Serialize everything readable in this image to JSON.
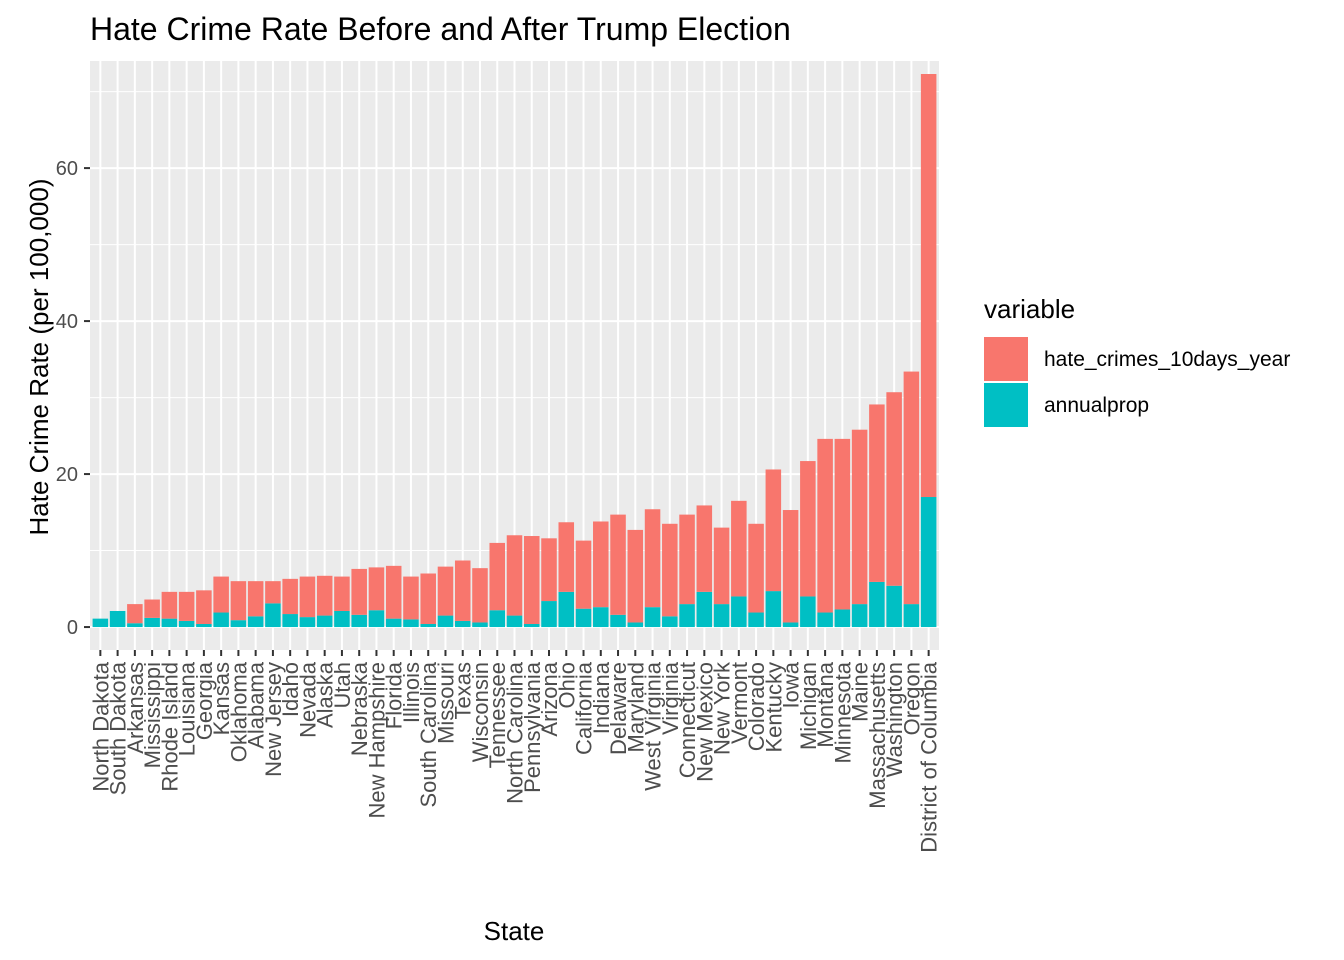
{
  "chart_data": {
    "type": "bar",
    "stacked": true,
    "title": "Hate Crime Rate Before and After Trump Election",
    "xlabel": "State",
    "ylabel": "Hate Crime Rate (per 100,000)",
    "ylim": [
      -3,
      74
    ],
    "yticks": [
      0,
      20,
      40,
      60
    ],
    "grid": true,
    "legend": {
      "title": "variable",
      "placement": "right",
      "entries": [
        {
          "label": "hate_crimes_10days_year",
          "color": "#F8766D"
        },
        {
          "label": "annualprop",
          "color": "#00BFC4"
        }
      ]
    },
    "categories": [
      "North Dakota",
      "South Dakota",
      "Arkansas",
      "Mississippi",
      "Rhode Island",
      "Louisiana",
      "Georgia",
      "Kansas",
      "Oklahoma",
      "Alabama",
      "New Jersey",
      "Idaho",
      "Nevada",
      "Alaska",
      "Utah",
      "Nebraska",
      "New Hampshire",
      "Florida",
      "Illinois",
      "South Carolina",
      "Missouri",
      "Texas",
      "Wisconsin",
      "Tennessee",
      "North Carolina",
      "Pennsylvania",
      "Arizona",
      "Ohio",
      "California",
      "Indiana",
      "Delaware",
      "Maryland",
      "West Virginia",
      "Virginia",
      "Connecticut",
      "New Mexico",
      "New York",
      "Vermont",
      "Colorado",
      "Kentucky",
      "Iowa",
      "Michigan",
      "Montana",
      "Minnesota",
      "Maine",
      "Massachusetts",
      "Washington",
      "Oregon",
      "District of Columbia"
    ],
    "series": [
      {
        "name": "hate_crimes_10days_year",
        "color": "#F8766D",
        "values": [
          0,
          0,
          2.5,
          2.4,
          3.5,
          3.8,
          4.4,
          4.7,
          5.1,
          4.6,
          2.9,
          4.6,
          5.3,
          5.2,
          4.5,
          6.0,
          5.6,
          6.9,
          5.6,
          6.6,
          6.4,
          7.9,
          7.1,
          8.8,
          10.5,
          11.5,
          8.2,
          9.1,
          8.9,
          11.2,
          13.1,
          12.1,
          12.8,
          12.1,
          11.7,
          11.3,
          10.0,
          12.5,
          11.6,
          15.9,
          14.7,
          17.7,
          22.7,
          22.3,
          22.8,
          23.2,
          25.3,
          30.4,
          55.3
        ]
      },
      {
        "name": "annualprop",
        "color": "#00BFC4",
        "values": [
          1.1,
          2.1,
          0.5,
          1.2,
          1.1,
          0.8,
          0.4,
          1.9,
          0.9,
          1.4,
          3.1,
          1.7,
          1.3,
          1.5,
          2.1,
          1.6,
          2.2,
          1.1,
          1.0,
          0.4,
          1.5,
          0.8,
          0.6,
          2.2,
          1.5,
          0.4,
          3.4,
          4.6,
          2.4,
          2.6,
          1.6,
          0.6,
          2.6,
          1.4,
          3.0,
          4.6,
          3.0,
          4.0,
          1.9,
          4.7,
          0.6,
          4.0,
          1.9,
          2.3,
          3.0,
          5.9,
          5.4,
          3.0,
          17.0
        ]
      }
    ]
  }
}
